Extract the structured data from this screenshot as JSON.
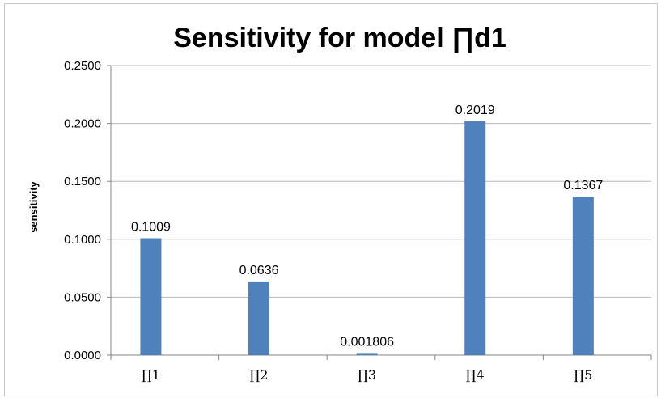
{
  "chart_data": {
    "type": "bar",
    "title": "Sensitivity for model ∏d1",
    "xlabel": "",
    "ylabel": "sensitivity",
    "categories": [
      "∏1",
      "∏2",
      "∏3",
      "∏4",
      "∏5"
    ],
    "values": [
      0.1009,
      0.0636,
      0.001806,
      0.2019,
      0.1367
    ],
    "data_labels": [
      "0.1009",
      "0.0636",
      "0.001806",
      "0.2019",
      "0.1367"
    ],
    "ylim": [
      0,
      0.25
    ],
    "yticks": [
      0,
      0.05,
      0.1,
      0.15,
      0.2,
      0.25
    ],
    "ytick_labels": [
      "0.0000",
      "0.0500",
      "0.1000",
      "0.1500",
      "0.2000",
      "0.2500"
    ],
    "grid": true,
    "legend": "none",
    "colors": {
      "bar": "#4f81bd",
      "grid": "#b8b8b8",
      "axis": "#868686"
    }
  }
}
